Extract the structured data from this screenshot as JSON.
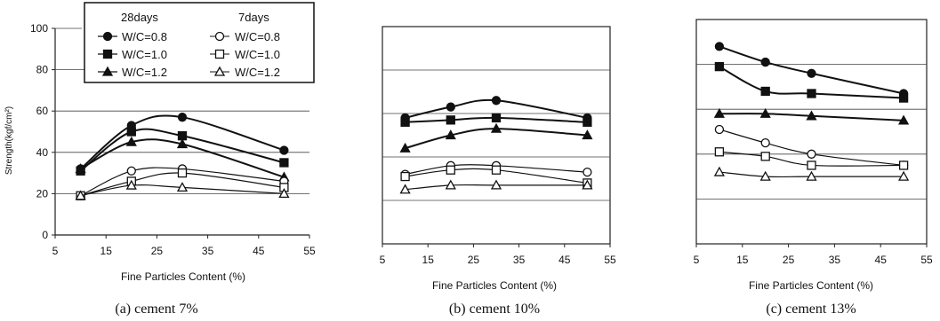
{
  "chart_data": [
    {
      "type": "line",
      "caption": "(a) cement 7%",
      "xlabel": "Fine Particles Content (%)",
      "ylabel": "Strength(kgf/cm²)",
      "xlim": [
        5,
        55
      ],
      "ylim": [
        0,
        100
      ],
      "xticks": [
        "5",
        "15",
        "25",
        "35",
        "45",
        "55"
      ],
      "yticks": [
        "0",
        "20",
        "40",
        "60",
        "80",
        "100"
      ],
      "grid": "horizontal",
      "legend": {
        "placement": "top-left",
        "group_28": "28days",
        "group_7": "7days"
      },
      "x": [
        10,
        20,
        30,
        50
      ],
      "series": [
        {
          "name": "W/C=0.8",
          "group": "28days",
          "marker": "circle",
          "filled": true,
          "values": [
            32,
            53,
            57,
            41
          ]
        },
        {
          "name": "W/C=1.0",
          "group": "28days",
          "marker": "square",
          "filled": true,
          "values": [
            31,
            50,
            48,
            35
          ]
        },
        {
          "name": "W/C=1.2",
          "group": "28days",
          "marker": "triangle",
          "filled": true,
          "values": [
            32,
            45,
            44,
            28
          ]
        },
        {
          "name": "W/C=0.8",
          "group": "7days",
          "marker": "circle",
          "filled": false,
          "values": [
            19,
            31,
            32,
            26
          ]
        },
        {
          "name": "W/C=1.0",
          "group": "7days",
          "marker": "square",
          "filled": false,
          "values": [
            19,
            26,
            30,
            23
          ]
        },
        {
          "name": "W/C=1.2",
          "group": "7days",
          "marker": "triangle",
          "filled": false,
          "values": [
            19,
            24,
            23,
            20
          ]
        }
      ]
    },
    {
      "type": "line",
      "caption": "(b) cement 10%",
      "xlabel": "Fine Particles Content (%)",
      "xlim": [
        5,
        55
      ],
      "ylim": [
        0,
        100
      ],
      "xticks": [
        "5",
        "15",
        "25",
        "35",
        "45",
        "55"
      ],
      "grid": "horizontal",
      "x": [
        10,
        20,
        30,
        50
      ],
      "series": [
        {
          "name": "W/C=0.8",
          "group": "28days",
          "marker": "circle",
          "filled": true,
          "values": [
            58,
            63,
            66,
            58
          ]
        },
        {
          "name": "W/C=1.0",
          "group": "28days",
          "marker": "square",
          "filled": true,
          "values": [
            56,
            57,
            58,
            56
          ]
        },
        {
          "name": "W/C=1.2",
          "group": "28days",
          "marker": "triangle",
          "filled": true,
          "values": [
            44,
            50,
            53,
            50
          ]
        },
        {
          "name": "W/C=0.8",
          "group": "7days",
          "marker": "circle",
          "filled": false,
          "values": [
            32,
            36,
            36,
            33
          ]
        },
        {
          "name": "W/C=1.0",
          "group": "7days",
          "marker": "square",
          "filled": false,
          "values": [
            31,
            34,
            34,
            28
          ]
        },
        {
          "name": "W/C=1.2",
          "group": "7days",
          "marker": "triangle",
          "filled": false,
          "values": [
            25,
            27,
            27,
            27
          ]
        }
      ]
    },
    {
      "type": "line",
      "caption": "(c) cement 13%",
      "xlabel": "Fine Particles Content (%)",
      "xlim": [
        5,
        55
      ],
      "ylim": [
        0,
        100
      ],
      "xticks": [
        "5",
        "15",
        "25",
        "35",
        "45",
        "55"
      ],
      "grid": "horizontal",
      "x": [
        10,
        20,
        30,
        50
      ],
      "series": [
        {
          "name": "W/C=0.8",
          "group": "28days",
          "marker": "circle",
          "filled": true,
          "values": [
            88,
            81,
            76,
            67
          ]
        },
        {
          "name": "W/C=1.0",
          "group": "28days",
          "marker": "square",
          "filled": true,
          "values": [
            79,
            68,
            67,
            65
          ]
        },
        {
          "name": "W/C=1.2",
          "group": "28days",
          "marker": "triangle",
          "filled": true,
          "values": [
            58,
            58,
            57,
            55
          ]
        },
        {
          "name": "W/C=0.8",
          "group": "7days",
          "marker": "circle",
          "filled": false,
          "values": [
            51,
            45,
            40,
            35
          ]
        },
        {
          "name": "W/C=1.0",
          "group": "7days",
          "marker": "square",
          "filled": false,
          "values": [
            41,
            39,
            35,
            35
          ]
        },
        {
          "name": "W/C=1.2",
          "group": "7days",
          "marker": "triangle",
          "filled": false,
          "values": [
            32,
            30,
            30,
            30
          ]
        }
      ]
    }
  ]
}
